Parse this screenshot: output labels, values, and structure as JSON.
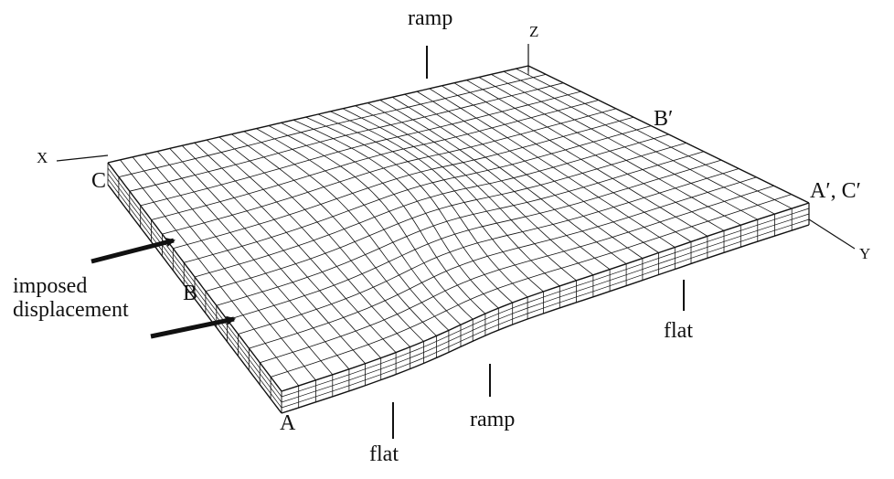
{
  "axes": {
    "x": "X",
    "y": "Y",
    "z": "Z"
  },
  "points": {
    "a": "A",
    "b": "B",
    "c": "C",
    "b_prime": "B′",
    "a_c_prime": "A′, C′"
  },
  "callouts": {
    "ramp_top": "ramp",
    "ramp_bottom": "ramp",
    "flat_bottom": "flat",
    "flat_right": "flat",
    "imposed_line1": "imposed",
    "imposed_line2": "displacement"
  },
  "colors": {
    "ink": "#111111",
    "background": "#ffffff"
  }
}
